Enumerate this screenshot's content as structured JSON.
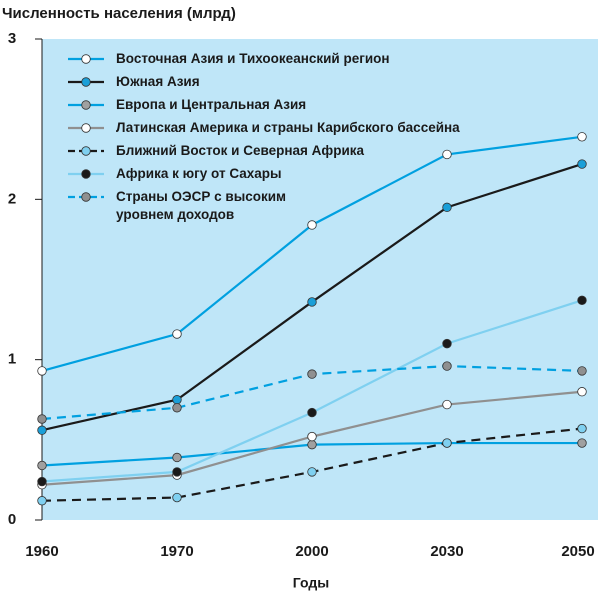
{
  "chart_data": {
    "type": "line",
    "title": "Численность населения (млрд)",
    "xlabel": "Годы",
    "categories": [
      "1960",
      "1970",
      "2000",
      "2030",
      "2050"
    ],
    "ylim": [
      0,
      3
    ],
    "yticks": [
      0,
      1,
      2,
      3
    ],
    "background": "#bfe6f8",
    "legend": "upper left",
    "series": [
      {
        "name": "Восточная Азия и Тихоокеанский регион",
        "color": "#00a0e0",
        "dashed": false,
        "marker_color": "#ffffff",
        "values": [
          0.93,
          1.16,
          1.84,
          2.28,
          2.39
        ]
      },
      {
        "name": "Южная Азия",
        "color": "#1a1a1a",
        "dashed": false,
        "marker_color": "#1a9fd8",
        "values": [
          0.56,
          0.75,
          1.36,
          1.95,
          2.22
        ]
      },
      {
        "name": "Европа и Центральная Азия",
        "color": "#00a0e0",
        "dashed": false,
        "marker_color": "#a0a0a0",
        "values": [
          0.34,
          0.39,
          0.47,
          0.48,
          0.48
        ]
      },
      {
        "name": "Латинская Америка и страны Карибского бассейна",
        "color": "#909090",
        "dashed": false,
        "marker_color": "#ffffff",
        "values": [
          0.22,
          0.28,
          0.52,
          0.72,
          0.8
        ]
      },
      {
        "name": "Ближний Восток и Северная Африка",
        "color": "#1a1a1a",
        "dashed": true,
        "marker_color": "#7fd0f0",
        "values": [
          0.12,
          0.14,
          0.3,
          0.48,
          0.57
        ]
      },
      {
        "name": "Африка к югу от Сахары",
        "color": "#7fd0f0",
        "dashed": false,
        "marker_color": "#1a1a1a",
        "values": [
          0.24,
          0.3,
          0.67,
          1.1,
          1.37
        ]
      },
      {
        "name": "Страны ОЭСР с высоким уровнем доходов",
        "color": "#00a0e0",
        "dashed": true,
        "marker_color": "#909090",
        "values": [
          0.63,
          0.7,
          0.91,
          0.96,
          0.93
        ]
      }
    ]
  }
}
